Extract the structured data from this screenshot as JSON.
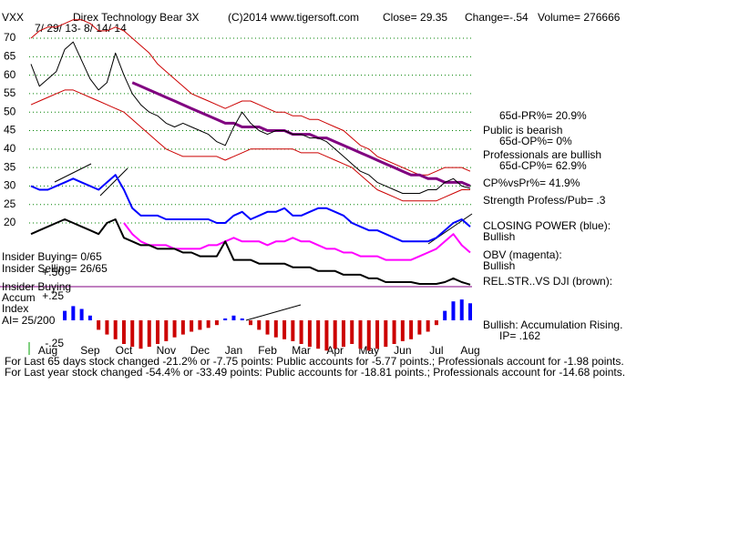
{
  "ticker": "VXX",
  "header": [
    "Direx Technology Bear 3X",
    "(C)2014 www.tigersoft.com",
    "Close=  29.35",
    "Change=-.54",
    "Volume= 276666"
  ],
  "footer": [
    "For Last 65 days stock changed -21.2% or -7.75 points:  Public accounts for -5.77 points.;  Professionals account for -1.98 points.",
    "For Last year stock changed -54.4% or -33.49 points:  Public accounts for -18.81 points.;  Professionals account for -14.68 points."
  ],
  "chart_data": [
    {
      "type": "line",
      "subtitle": "7/ 29/ 13- 8/ 14/ 14",
      "categories": [
        null,
        null,
        "Aug",
        null,
        null,
        null,
        null,
        "Sep",
        null,
        null,
        null,
        "Oct",
        null,
        null,
        null,
        null,
        "Nov",
        null,
        null,
        null,
        "Dec",
        null,
        null,
        null,
        "Jan",
        null,
        null,
        null,
        "Feb",
        null,
        null,
        null,
        "Mar",
        null,
        null,
        null,
        "Apr",
        null,
        null,
        null,
        "May",
        null,
        null,
        null,
        "Jun",
        null,
        null,
        null,
        "Jul",
        null,
        null,
        null,
        "Aug"
      ],
      "ylim": [
        2,
        72
      ],
      "yticks": [
        20,
        25,
        30,
        35,
        40,
        45,
        50,
        55,
        60,
        65,
        70
      ],
      "grid": true,
      "grid_color": "#008000",
      "series": [
        {
          "color": "#cc0000",
          "values": [
            70,
            72,
            73,
            73,
            74,
            75,
            75,
            74,
            72,
            72,
            73,
            72,
            70,
            68,
            66,
            63,
            61,
            59,
            57,
            55,
            54,
            53,
            52,
            51,
            52,
            53,
            53,
            52,
            51,
            50,
            50,
            49,
            49,
            48,
            48,
            47,
            46,
            45,
            43,
            41,
            40,
            38,
            37,
            36,
            35,
            34,
            33,
            33,
            34,
            35,
            35,
            35,
            34
          ]
        },
        {
          "color": "#cc0000",
          "values": [
            52,
            53,
            54,
            55,
            56,
            56,
            55,
            54,
            53,
            52,
            51,
            50,
            48,
            46,
            44,
            42,
            40,
            39,
            38,
            38,
            38,
            38,
            38,
            37,
            38,
            39,
            40,
            40,
            40,
            40,
            40,
            40,
            39,
            39,
            39,
            38,
            37,
            36,
            35,
            33,
            31,
            29,
            28,
            27,
            26,
            26,
            26,
            26,
            26,
            27,
            28,
            29,
            29
          ]
        },
        {
          "color": "#800080",
          "values": [
            null,
            null,
            null,
            null,
            null,
            null,
            null,
            null,
            null,
            null,
            null,
            null,
            58,
            57,
            56,
            55,
            54,
            53,
            52,
            51,
            50,
            49,
            48,
            47,
            47,
            46,
            46,
            46,
            45,
            45,
            45,
            44,
            44,
            44,
            43,
            43,
            42,
            41,
            40,
            39,
            38,
            37,
            36,
            35,
            34,
            33,
            33,
            32,
            32,
            31,
            31,
            31,
            30
          ]
        },
        {
          "color": "#000000",
          "values": [
            63,
            57,
            59,
            61,
            67,
            69,
            64,
            59,
            56,
            58,
            66,
            60,
            55,
            52,
            50,
            49,
            47,
            46,
            47,
            46,
            45,
            44,
            42,
            41,
            46,
            50,
            47,
            45,
            44,
            45,
            45,
            44,
            44,
            43,
            43,
            42,
            40,
            38,
            36,
            34,
            33,
            31,
            30,
            29,
            28,
            28,
            28,
            29,
            29,
            31,
            32,
            30,
            29.35
          ]
        },
        {
          "color": "#0000ff",
          "values": [
            30,
            29,
            29,
            30,
            31,
            32,
            31,
            30,
            29,
            31,
            33,
            29,
            24,
            22,
            22,
            22,
            21,
            21,
            21,
            21,
            21,
            21,
            20,
            20,
            22,
            23,
            21,
            22,
            23,
            23,
            24,
            22,
            22,
            23,
            24,
            24,
            23,
            22,
            20,
            19,
            18,
            18,
            17,
            16,
            15,
            15,
            15,
            15,
            16,
            18,
            20,
            21,
            19
          ]
        },
        {
          "color": "#ff00ff",
          "values": [
            null,
            null,
            null,
            null,
            null,
            null,
            null,
            null,
            null,
            null,
            null,
            20,
            17,
            15,
            14,
            14,
            14,
            13,
            13,
            13,
            13,
            14,
            14,
            15,
            16,
            15,
            15,
            15,
            14,
            15,
            15,
            16,
            15,
            15,
            14,
            13,
            13,
            12,
            12,
            11,
            11,
            11,
            10,
            10,
            10,
            10,
            11,
            12,
            13,
            15,
            17,
            14,
            12
          ]
        },
        {
          "color": "#000000",
          "values": [
            17,
            18,
            19,
            20,
            21,
            20,
            19,
            18,
            17,
            20,
            21,
            16,
            15,
            14,
            14,
            13,
            13,
            13,
            12,
            12,
            11,
            11,
            11,
            15,
            10,
            10,
            10,
            9,
            9,
            9,
            9,
            8,
            8,
            8,
            7,
            7,
            7,
            6,
            6,
            6,
            5,
            5,
            4,
            4,
            4,
            4,
            3.5,
            3.5,
            3.5,
            4,
            5,
            4,
            3.3
          ]
        }
      ],
      "annotations": [
        "65d-PR%= 20.9%",
        "Public is bearish",
        "65d-OP%= 0%",
        "Professionals are bullish",
        "65d-CP%= 62.9%",
        "CP%vsPr%=  41.9%",
        "Strength Profess/Pub= .3",
        "CLOSING POWER (blue):",
        "Bullish",
        "OBV (magenta):",
        "Bullish",
        "REL.STR..VS DJI (brown):",
        "Insider Buying= 0/65",
        "Insider Selling= 26/65"
      ]
    },
    {
      "type": "bar",
      "values": [
        null,
        null,
        null,
        null,
        0.1,
        0.15,
        0.12,
        0.05,
        -0.1,
        -0.15,
        -0.2,
        -0.25,
        -0.28,
        -0.3,
        -0.28,
        -0.25,
        -0.22,
        -0.18,
        -0.15,
        -0.12,
        -0.1,
        -0.08,
        -0.05,
        0.02,
        0.05,
        0.02,
        -0.05,
        -0.1,
        -0.15,
        -0.18,
        -0.2,
        -0.22,
        -0.25,
        -0.28,
        -0.3,
        -0.32,
        -0.3,
        -0.28,
        -0.25,
        -0.3,
        -0.32,
        -0.3,
        -0.28,
        -0.25,
        -0.22,
        -0.2,
        -0.15,
        -0.12,
        -0.05,
        0.1,
        0.2,
        0.22,
        0.18
      ],
      "ylim": [
        -0.35,
        0.55
      ],
      "yticks": [
        {
          "value": 0.5,
          "label": "+.50"
        },
        {
          "value": 0.25,
          "label": "+.25"
        },
        {
          "value": -0.25,
          "label": "-.25"
        }
      ],
      "colors": {
        "positive": "#0000ff",
        "negative": "#cc0000"
      },
      "annotations": [
        "Insider Buying",
        "Accum",
        "Index",
        "AI= 25/200",
        "Bullish: Accumulation Rising.",
        "IP=  .162"
      ]
    }
  ]
}
